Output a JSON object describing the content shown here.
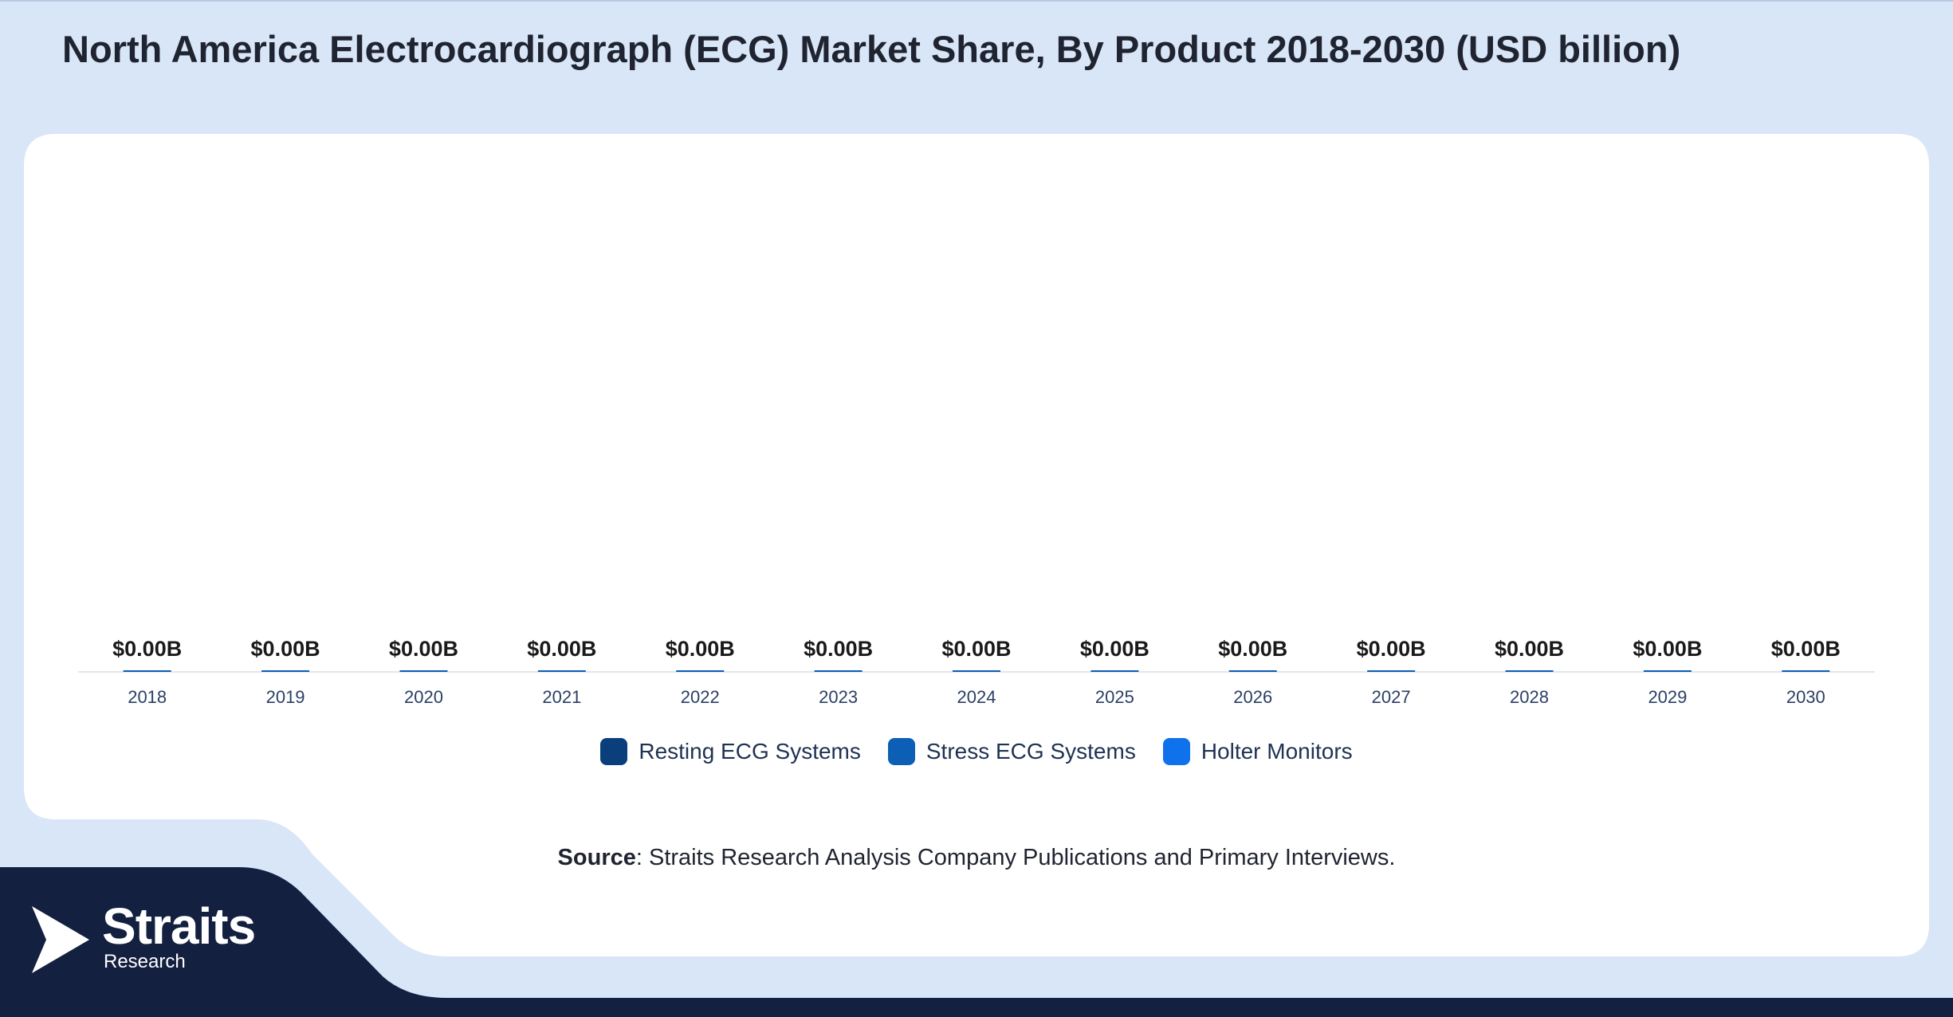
{
  "title": "North America Electrocardiograph (ECG) Market Share, By Product 2018-2030 (USD billion)",
  "colors": {
    "page_bg": "#d8e6f8",
    "card_bg": "#ffffff",
    "navy": "#13203f",
    "resting": "#0b3f7c",
    "stress": "#0d5eb5",
    "holter": "#0f72ec",
    "value_label": "#1a1a1a",
    "tick_label": "#2b3f64"
  },
  "chart_data": {
    "type": "bar",
    "stacked": true,
    "categories": [
      "2018",
      "2019",
      "2020",
      "2021",
      "2022",
      "2023",
      "2024",
      "2025",
      "2026",
      "2027",
      "2028",
      "2029",
      "2030"
    ],
    "series": [
      {
        "name": "Resting ECG Systems",
        "values": [
          0,
          0,
          0,
          0,
          0,
          0,
          0,
          0,
          0,
          0,
          0,
          0,
          0
        ]
      },
      {
        "name": "Stress ECG Systems",
        "values": [
          0,
          0,
          0,
          0,
          0,
          0,
          0,
          0,
          0,
          0,
          0,
          0,
          0
        ]
      },
      {
        "name": "Holter Monitors",
        "values": [
          0,
          0,
          0,
          0,
          0,
          0,
          0,
          0,
          0,
          0,
          0,
          0,
          0
        ]
      }
    ],
    "total_labels": [
      "$0.00B",
      "$0.00B",
      "$0.00B",
      "$0.00B",
      "$0.00B",
      "$0.00B",
      "$0.00B",
      "$0.00B",
      "$0.00B",
      "$0.00B",
      "$0.00B",
      "$0.00B",
      "$0.00B"
    ],
    "legend_position": "bottom",
    "grid": false
  },
  "legend": {
    "items": [
      {
        "label": "Resting ECG Systems"
      },
      {
        "label": "Stress ECG Systems"
      },
      {
        "label": "Holter Monitors"
      }
    ]
  },
  "source": {
    "bold": "Source",
    "text": ": Straits Research Analysis Company Publications and Primary Interviews."
  },
  "logo": {
    "word": "Straits",
    "sub": "Research"
  }
}
